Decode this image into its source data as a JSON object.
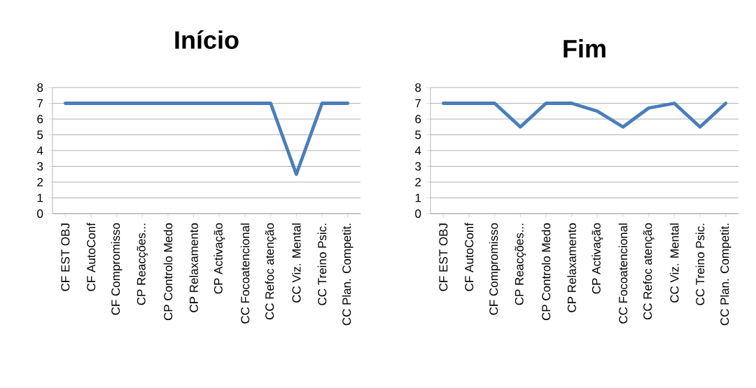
{
  "chart_data": [
    {
      "type": "line",
      "title": "Início",
      "categories": [
        "CF EST OBJ",
        "CF AutoConf",
        "CF Compromisso",
        "CP Reacções...",
        "CP Controlo Medo",
        "CP Relaxamento",
        "CP Activação",
        "CC Focoatencional",
        "CC Refoc atenção",
        "CC Viz. Mental",
        "CC Treino Psic.",
        "CC Plan. Competit."
      ],
      "values": [
        7,
        7,
        7,
        7,
        7,
        7,
        7,
        7,
        7,
        2.5,
        7,
        7
      ],
      "color": "#4a7ebb",
      "ylim": [
        0,
        8
      ],
      "yticks": [
        0,
        1,
        2,
        3,
        4,
        5,
        6,
        7,
        8
      ],
      "grid": "y"
    },
    {
      "type": "line",
      "title": "Fim",
      "categories": [
        "CF EST OBJ",
        "CF AutoConf",
        "CF Compromisso",
        "CP Reacções...",
        "CP Controlo Medo",
        "CP Relaxamento",
        "CP Activação",
        "CC Focoatencional",
        "CC Refoc atenção",
        "CC Viz. Mental",
        "CC Treino Psic.",
        "CC Plan. Competit."
      ],
      "values": [
        7,
        7,
        7,
        5.5,
        7,
        7,
        6.5,
        5.5,
        6.7,
        7,
        5.5,
        7
      ],
      "color": "#4a7ebb",
      "ylim": [
        0,
        8
      ],
      "yticks": [
        0,
        1,
        2,
        3,
        4,
        5,
        6,
        7,
        8
      ],
      "grid": "y"
    }
  ]
}
